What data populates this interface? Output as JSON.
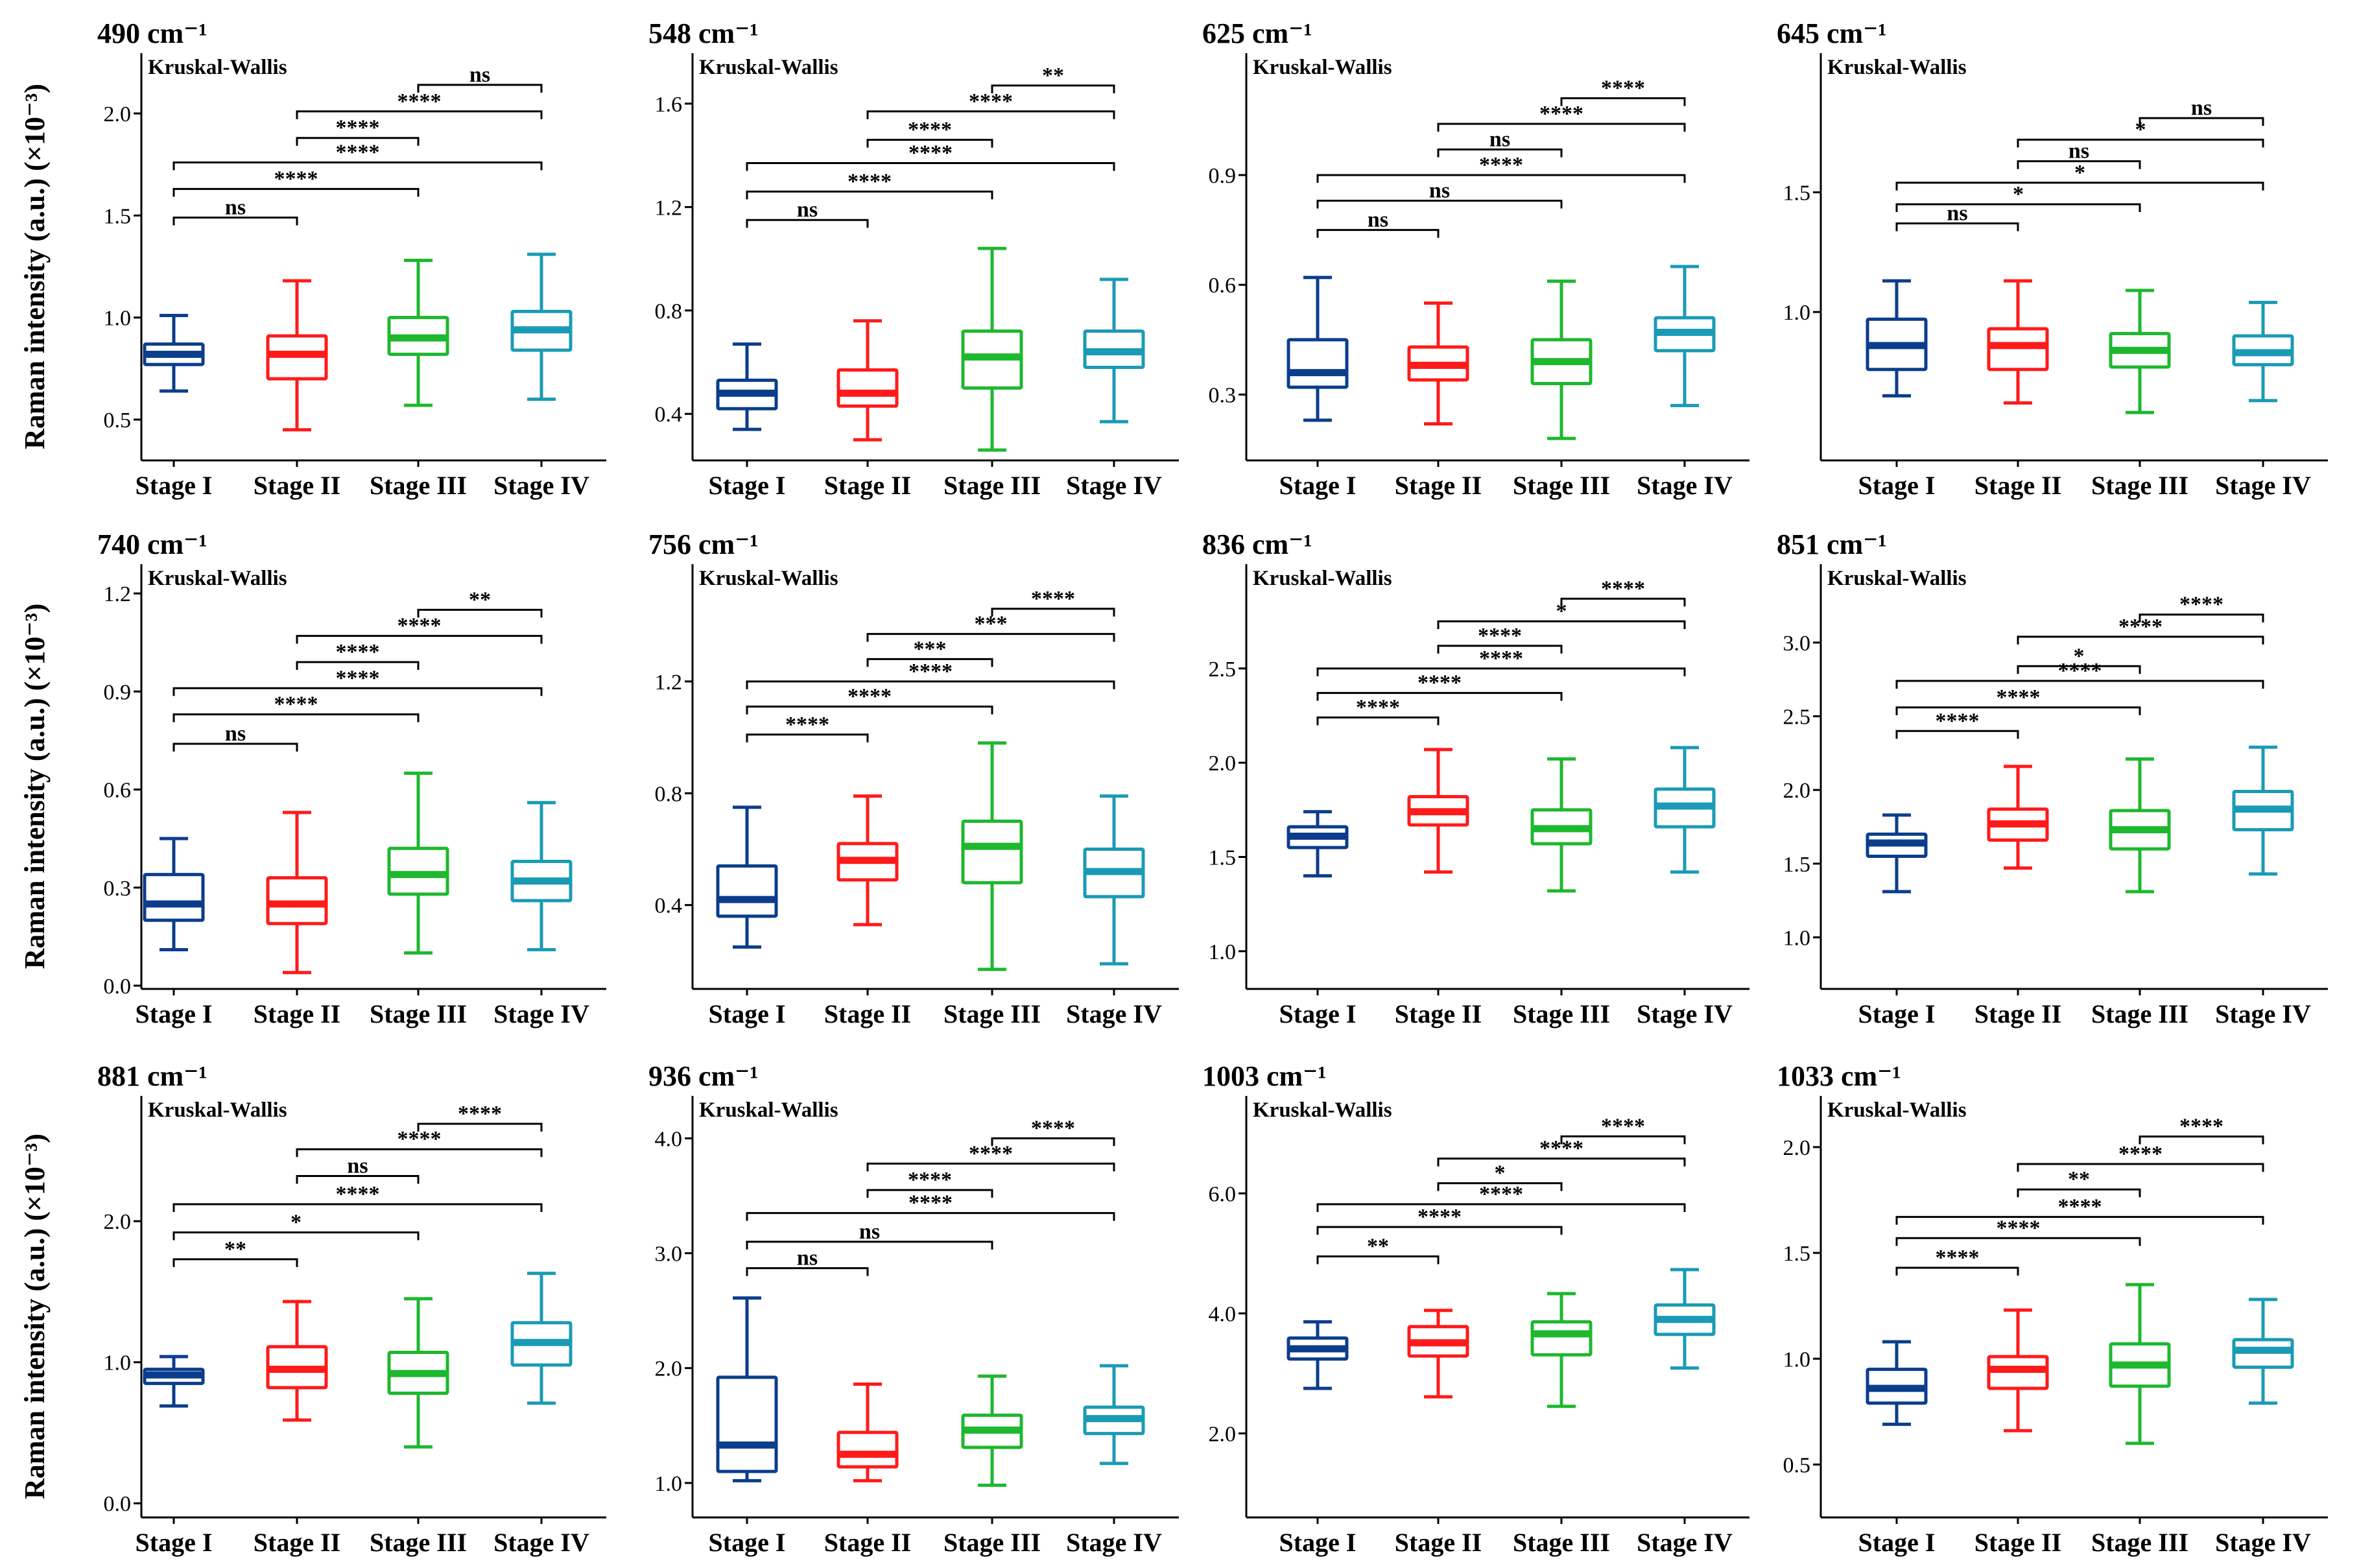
{
  "ylabel": "Raman intensity (a.u.) (×10⁻³)",
  "test_label": "Kruskal-Wallis",
  "stage_colors": [
    "#0b3d8c",
    "#ff1a1a",
    "#1db82e",
    "#1a9bb5"
  ],
  "chart_data": [
    {
      "type": "box",
      "title": "490 cm⁻¹",
      "categories": [
        "Stage I",
        "Stage II",
        "Stage III",
        "Stage IV"
      ],
      "ylim": [
        0.3,
        2.2
      ],
      "yticks": [
        0.5,
        1.0,
        1.5,
        2.0
      ],
      "ytick_labels": [
        "0.5",
        "1.0",
        "1.5",
        "2.0"
      ],
      "boxes": [
        {
          "min": 0.64,
          "q1": 0.77,
          "median": 0.82,
          "q3": 0.87,
          "max": 1.01
        },
        {
          "min": 0.45,
          "q1": 0.7,
          "median": 0.82,
          "q3": 0.91,
          "max": 1.18
        },
        {
          "min": 0.57,
          "q1": 0.82,
          "median": 0.9,
          "q3": 1.0,
          "max": 1.28
        },
        {
          "min": 0.6,
          "q1": 0.84,
          "median": 0.94,
          "q3": 1.03,
          "max": 1.31
        }
      ],
      "comparisons": [
        {
          "a": 0,
          "b": 1,
          "y": 1.49,
          "label": "ns"
        },
        {
          "a": 0,
          "b": 2,
          "y": 1.63,
          "label": "****"
        },
        {
          "a": 0,
          "b": 3,
          "y": 1.76,
          "label": "****"
        },
        {
          "a": 1,
          "b": 2,
          "y": 1.88,
          "label": "****"
        },
        {
          "a": 1,
          "b": 3,
          "y": 2.01,
          "label": "****"
        },
        {
          "a": 2,
          "b": 3,
          "y": 2.14,
          "label": "ns"
        }
      ]
    },
    {
      "type": "box",
      "title": "548 cm⁻¹",
      "categories": [
        "Stage I",
        "Stage II",
        "Stage III",
        "Stage IV"
      ],
      "ylim": [
        0.22,
        1.72
      ],
      "yticks": [
        0.4,
        0.8,
        1.2,
        1.6
      ],
      "ytick_labels": [
        "0.4",
        "0.8",
        "1.2",
        "1.6"
      ],
      "boxes": [
        {
          "min": 0.34,
          "q1": 0.42,
          "median": 0.48,
          "q3": 0.53,
          "max": 0.67
        },
        {
          "min": 0.3,
          "q1": 0.43,
          "median": 0.48,
          "q3": 0.57,
          "max": 0.76
        },
        {
          "min": 0.26,
          "q1": 0.5,
          "median": 0.62,
          "q3": 0.72,
          "max": 1.04
        },
        {
          "min": 0.37,
          "q1": 0.58,
          "median": 0.64,
          "q3": 0.72,
          "max": 0.92
        }
      ],
      "comparisons": [
        {
          "a": 0,
          "b": 1,
          "y": 1.15,
          "label": "ns"
        },
        {
          "a": 0,
          "b": 2,
          "y": 1.26,
          "label": "****"
        },
        {
          "a": 0,
          "b": 3,
          "y": 1.37,
          "label": "****"
        },
        {
          "a": 1,
          "b": 2,
          "y": 1.46,
          "label": "****"
        },
        {
          "a": 1,
          "b": 3,
          "y": 1.57,
          "label": "****"
        },
        {
          "a": 2,
          "b": 3,
          "y": 1.67,
          "label": "**"
        }
      ]
    },
    {
      "type": "box",
      "title": "625 cm⁻¹",
      "categories": [
        "Stage I",
        "Stage II",
        "Stage III",
        "Stage IV"
      ],
      "ylim": [
        0.12,
        1.18
      ],
      "yticks": [
        0.3,
        0.6,
        0.9
      ],
      "ytick_labels": [
        "0.3",
        "0.6",
        "0.9"
      ],
      "boxes": [
        {
          "min": 0.23,
          "q1": 0.32,
          "median": 0.36,
          "q3": 0.45,
          "max": 0.62
        },
        {
          "min": 0.22,
          "q1": 0.34,
          "median": 0.38,
          "q3": 0.43,
          "max": 0.55
        },
        {
          "min": 0.18,
          "q1": 0.33,
          "median": 0.39,
          "q3": 0.45,
          "max": 0.61
        },
        {
          "min": 0.27,
          "q1": 0.42,
          "median": 0.47,
          "q3": 0.51,
          "max": 0.65
        }
      ],
      "comparisons": [
        {
          "a": 0,
          "b": 1,
          "y": 0.75,
          "label": "ns"
        },
        {
          "a": 0,
          "b": 2,
          "y": 0.83,
          "label": "ns"
        },
        {
          "a": 0,
          "b": 3,
          "y": 0.9,
          "label": "****"
        },
        {
          "a": 1,
          "b": 2,
          "y": 0.97,
          "label": "ns"
        },
        {
          "a": 1,
          "b": 3,
          "y": 1.04,
          "label": "****"
        },
        {
          "a": 2,
          "b": 3,
          "y": 1.11,
          "label": "****"
        }
      ]
    },
    {
      "type": "box",
      "title": "645 cm⁻¹",
      "categories": [
        "Stage I",
        "Stage II",
        "Stage III",
        "Stage IV"
      ],
      "ylim": [
        0.38,
        2.0
      ],
      "yticks": [
        1.0,
        1.5
      ],
      "ytick_labels": [
        "1.0",
        "1.5"
      ],
      "boxes": [
        {
          "min": 0.65,
          "q1": 0.76,
          "median": 0.86,
          "q3": 0.97,
          "max": 1.13
        },
        {
          "min": 0.62,
          "q1": 0.76,
          "median": 0.86,
          "q3": 0.93,
          "max": 1.13
        },
        {
          "min": 0.58,
          "q1": 0.77,
          "median": 0.84,
          "q3": 0.91,
          "max": 1.09
        },
        {
          "min": 0.63,
          "q1": 0.78,
          "median": 0.83,
          "q3": 0.9,
          "max": 1.04
        }
      ],
      "comparisons": [
        {
          "a": 0,
          "b": 1,
          "y": 1.37,
          "label": "ns"
        },
        {
          "a": 0,
          "b": 2,
          "y": 1.45,
          "label": "*"
        },
        {
          "a": 0,
          "b": 3,
          "y": 1.54,
          "label": "*"
        },
        {
          "a": 1,
          "b": 2,
          "y": 1.63,
          "label": "ns"
        },
        {
          "a": 1,
          "b": 3,
          "y": 1.72,
          "label": "*"
        },
        {
          "a": 2,
          "b": 3,
          "y": 1.81,
          "label": "ns"
        }
      ]
    },
    {
      "type": "box",
      "title": "740 cm⁻¹",
      "categories": [
        "Stage I",
        "Stage II",
        "Stage III",
        "Stage IV"
      ],
      "ylim": [
        -0.01,
        1.23
      ],
      "yticks": [
        0.0,
        0.3,
        0.6,
        0.9,
        1.2
      ],
      "ytick_labels": [
        "0.0",
        "0.3",
        "0.6",
        "0.9",
        "1.2"
      ],
      "boxes": [
        {
          "min": 0.11,
          "q1": 0.2,
          "median": 0.25,
          "q3": 0.34,
          "max": 0.45
        },
        {
          "min": 0.04,
          "q1": 0.19,
          "median": 0.25,
          "q3": 0.33,
          "max": 0.53
        },
        {
          "min": 0.1,
          "q1": 0.28,
          "median": 0.34,
          "q3": 0.42,
          "max": 0.65
        },
        {
          "min": 0.11,
          "q1": 0.26,
          "median": 0.32,
          "q3": 0.38,
          "max": 0.56
        }
      ],
      "comparisons": [
        {
          "a": 0,
          "b": 1,
          "y": 0.74,
          "label": "ns"
        },
        {
          "a": 0,
          "b": 2,
          "y": 0.83,
          "label": "****"
        },
        {
          "a": 0,
          "b": 3,
          "y": 0.91,
          "label": "****"
        },
        {
          "a": 1,
          "b": 2,
          "y": 0.99,
          "label": "****"
        },
        {
          "a": 1,
          "b": 3,
          "y": 1.07,
          "label": "****"
        },
        {
          "a": 2,
          "b": 3,
          "y": 1.15,
          "label": "**"
        }
      ]
    },
    {
      "type": "box",
      "title": "756 cm⁻¹",
      "categories": [
        "Stage I",
        "Stage II",
        "Stage III",
        "Stage IV"
      ],
      "ylim": [
        0.1,
        1.55
      ],
      "yticks": [
        0.4,
        0.8,
        1.2
      ],
      "ytick_labels": [
        "0.4",
        "0.8",
        "1.2"
      ],
      "boxes": [
        {
          "min": 0.25,
          "q1": 0.36,
          "median": 0.42,
          "q3": 0.54,
          "max": 0.75
        },
        {
          "min": 0.33,
          "q1": 0.49,
          "median": 0.56,
          "q3": 0.62,
          "max": 0.79
        },
        {
          "min": 0.17,
          "q1": 0.48,
          "median": 0.61,
          "q3": 0.7,
          "max": 0.98
        },
        {
          "min": 0.19,
          "q1": 0.43,
          "median": 0.52,
          "q3": 0.6,
          "max": 0.79
        }
      ],
      "comparisons": [
        {
          "a": 0,
          "b": 1,
          "y": 1.01,
          "label": "****"
        },
        {
          "a": 0,
          "b": 2,
          "y": 1.11,
          "label": "****"
        },
        {
          "a": 0,
          "b": 3,
          "y": 1.2,
          "label": "****"
        },
        {
          "a": 1,
          "b": 2,
          "y": 1.28,
          "label": "***"
        },
        {
          "a": 1,
          "b": 3,
          "y": 1.37,
          "label": "***"
        },
        {
          "a": 2,
          "b": 3,
          "y": 1.46,
          "label": "****"
        }
      ]
    },
    {
      "type": "box",
      "title": "836 cm⁻¹",
      "categories": [
        "Stage I",
        "Stage II",
        "Stage III",
        "Stage IV"
      ],
      "ylim": [
        0.8,
        2.95
      ],
      "yticks": [
        1.0,
        1.5,
        2.0,
        2.5
      ],
      "ytick_labels": [
        "1.0",
        "1.5",
        "2.0",
        "2.5"
      ],
      "boxes": [
        {
          "min": 1.4,
          "q1": 1.55,
          "median": 1.61,
          "q3": 1.66,
          "max": 1.74
        },
        {
          "min": 1.42,
          "q1": 1.67,
          "median": 1.74,
          "q3": 1.82,
          "max": 2.07
        },
        {
          "min": 1.32,
          "q1": 1.57,
          "median": 1.65,
          "q3": 1.75,
          "max": 2.02
        },
        {
          "min": 1.42,
          "q1": 1.66,
          "median": 1.77,
          "q3": 1.86,
          "max": 2.08
        }
      ],
      "comparisons": [
        {
          "a": 0,
          "b": 1,
          "y": 2.24,
          "label": "****"
        },
        {
          "a": 0,
          "b": 2,
          "y": 2.37,
          "label": "****"
        },
        {
          "a": 0,
          "b": 3,
          "y": 2.5,
          "label": "****"
        },
        {
          "a": 1,
          "b": 2,
          "y": 2.62,
          "label": "****"
        },
        {
          "a": 1,
          "b": 3,
          "y": 2.75,
          "label": "*"
        },
        {
          "a": 2,
          "b": 3,
          "y": 2.87,
          "label": "****"
        }
      ]
    },
    {
      "type": "box",
      "title": "851 cm⁻¹",
      "categories": [
        "Stage I",
        "Stage II",
        "Stage III",
        "Stage IV"
      ],
      "ylim": [
        0.65,
        3.4
      ],
      "yticks": [
        1.0,
        1.5,
        2.0,
        2.5,
        3.0
      ],
      "ytick_labels": [
        "1.0",
        "1.5",
        "2.0",
        "2.5",
        "3.0"
      ],
      "boxes": [
        {
          "min": 1.31,
          "q1": 1.55,
          "median": 1.64,
          "q3": 1.7,
          "max": 1.83
        },
        {
          "min": 1.47,
          "q1": 1.66,
          "median": 1.77,
          "q3": 1.87,
          "max": 2.16
        },
        {
          "min": 1.31,
          "q1": 1.6,
          "median": 1.73,
          "q3": 1.86,
          "max": 2.21
        },
        {
          "min": 1.43,
          "q1": 1.73,
          "median": 1.87,
          "q3": 1.99,
          "max": 2.29
        }
      ],
      "comparisons": [
        {
          "a": 0,
          "b": 1,
          "y": 2.4,
          "label": "****"
        },
        {
          "a": 0,
          "b": 2,
          "y": 2.56,
          "label": "****"
        },
        {
          "a": 0,
          "b": 3,
          "y": 2.74,
          "label": "****"
        },
        {
          "a": 1,
          "b": 2,
          "y": 2.84,
          "label": "*"
        },
        {
          "a": 1,
          "b": 3,
          "y": 3.04,
          "label": "****"
        },
        {
          "a": 2,
          "b": 3,
          "y": 3.19,
          "label": "****"
        }
      ]
    },
    {
      "type": "box",
      "title": "881 cm⁻¹",
      "categories": [
        "Stage I",
        "Stage II",
        "Stage III",
        "Stage IV"
      ],
      "ylim": [
        -0.1,
        2.75
      ],
      "yticks": [
        0.0,
        1.0,
        2.0
      ],
      "ytick_labels": [
        "0.0",
        "1.0",
        "2.0"
      ],
      "boxes": [
        {
          "min": 0.69,
          "q1": 0.85,
          "median": 0.91,
          "q3": 0.95,
          "max": 1.04
        },
        {
          "min": 0.59,
          "q1": 0.82,
          "median": 0.95,
          "q3": 1.11,
          "max": 1.43
        },
        {
          "min": 0.4,
          "q1": 0.78,
          "median": 0.92,
          "q3": 1.07,
          "max": 1.45
        },
        {
          "min": 0.71,
          "q1": 0.98,
          "median": 1.14,
          "q3": 1.28,
          "max": 1.63
        }
      ],
      "comparisons": [
        {
          "a": 0,
          "b": 1,
          "y": 1.73,
          "label": "**"
        },
        {
          "a": 0,
          "b": 2,
          "y": 1.92,
          "label": "*"
        },
        {
          "a": 0,
          "b": 3,
          "y": 2.12,
          "label": "****"
        },
        {
          "a": 1,
          "b": 2,
          "y": 2.32,
          "label": "ns"
        },
        {
          "a": 1,
          "b": 3,
          "y": 2.51,
          "label": "****"
        },
        {
          "a": 2,
          "b": 3,
          "y": 2.69,
          "label": "****"
        }
      ]
    },
    {
      "type": "box",
      "title": "936 cm⁻¹",
      "categories": [
        "Stage I",
        "Stage II",
        "Stage III",
        "Stage IV"
      ],
      "ylim": [
        0.7,
        4.2
      ],
      "yticks": [
        1.0,
        2.0,
        3.0,
        4.0
      ],
      "ytick_labels": [
        "1.0",
        "2.0",
        "3.0",
        "4.0"
      ],
      "boxes": [
        {
          "min": 1.02,
          "q1": 1.1,
          "median": 1.33,
          "q3": 1.92,
          "max": 2.61
        },
        {
          "min": 1.02,
          "q1": 1.14,
          "median": 1.25,
          "q3": 1.44,
          "max": 1.86
        },
        {
          "min": 0.98,
          "q1": 1.31,
          "median": 1.46,
          "q3": 1.59,
          "max": 1.93
        },
        {
          "min": 1.17,
          "q1": 1.43,
          "median": 1.56,
          "q3": 1.66,
          "max": 2.02
        }
      ],
      "comparisons": [
        {
          "a": 0,
          "b": 1,
          "y": 2.87,
          "label": "ns"
        },
        {
          "a": 0,
          "b": 2,
          "y": 3.1,
          "label": "ns"
        },
        {
          "a": 0,
          "b": 3,
          "y": 3.35,
          "label": "****"
        },
        {
          "a": 1,
          "b": 2,
          "y": 3.55,
          "label": "****"
        },
        {
          "a": 1,
          "b": 3,
          "y": 3.78,
          "label": "****"
        },
        {
          "a": 2,
          "b": 3,
          "y": 4.0,
          "label": "****"
        }
      ]
    },
    {
      "type": "box",
      "title": "1003 cm⁻¹",
      "categories": [
        "Stage I",
        "Stage II",
        "Stage III",
        "Stage IV"
      ],
      "ylim": [
        0.6,
        7.3
      ],
      "yticks": [
        2.0,
        4.0,
        6.0
      ],
      "ytick_labels": [
        "2.0",
        "4.0",
        "6.0"
      ],
      "boxes": [
        {
          "min": 2.75,
          "q1": 3.24,
          "median": 3.41,
          "q3": 3.59,
          "max": 3.86
        },
        {
          "min": 2.61,
          "q1": 3.29,
          "median": 3.51,
          "q3": 3.78,
          "max": 4.05
        },
        {
          "min": 2.45,
          "q1": 3.31,
          "median": 3.66,
          "q3": 3.86,
          "max": 4.33
        },
        {
          "min": 3.09,
          "q1": 3.65,
          "median": 3.9,
          "q3": 4.14,
          "max": 4.73
        }
      ],
      "comparisons": [
        {
          "a": 0,
          "b": 1,
          "y": 4.95,
          "label": "**"
        },
        {
          "a": 0,
          "b": 2,
          "y": 5.44,
          "label": "****"
        },
        {
          "a": 0,
          "b": 3,
          "y": 5.82,
          "label": "****"
        },
        {
          "a": 1,
          "b": 2,
          "y": 6.17,
          "label": "*"
        },
        {
          "a": 1,
          "b": 3,
          "y": 6.58,
          "label": "****"
        },
        {
          "a": 2,
          "b": 3,
          "y": 6.95,
          "label": "****"
        }
      ]
    },
    {
      "type": "box",
      "title": "1033 cm⁻¹",
      "categories": [
        "Stage I",
        "Stage II",
        "Stage III",
        "Stage IV"
      ],
      "ylim": [
        0.25,
        2.15
      ],
      "yticks": [
        0.5,
        1.0,
        1.5,
        2.0
      ],
      "ytick_labels": [
        "0.5",
        "1.0",
        "1.5",
        "2.0"
      ],
      "boxes": [
        {
          "min": 0.69,
          "q1": 0.79,
          "median": 0.86,
          "q3": 0.95,
          "max": 1.08
        },
        {
          "min": 0.66,
          "q1": 0.86,
          "median": 0.95,
          "q3": 1.01,
          "max": 1.23
        },
        {
          "min": 0.6,
          "q1": 0.87,
          "median": 0.97,
          "q3": 1.07,
          "max": 1.35
        },
        {
          "min": 0.79,
          "q1": 0.96,
          "median": 1.04,
          "q3": 1.09,
          "max": 1.28
        }
      ],
      "comparisons": [
        {
          "a": 0,
          "b": 1,
          "y": 1.43,
          "label": "****"
        },
        {
          "a": 0,
          "b": 2,
          "y": 1.57,
          "label": "****"
        },
        {
          "a": 0,
          "b": 3,
          "y": 1.67,
          "label": "****"
        },
        {
          "a": 1,
          "b": 2,
          "y": 1.8,
          "label": "**"
        },
        {
          "a": 1,
          "b": 3,
          "y": 1.92,
          "label": "****"
        },
        {
          "a": 2,
          "b": 3,
          "y": 2.05,
          "label": "****"
        }
      ]
    }
  ]
}
